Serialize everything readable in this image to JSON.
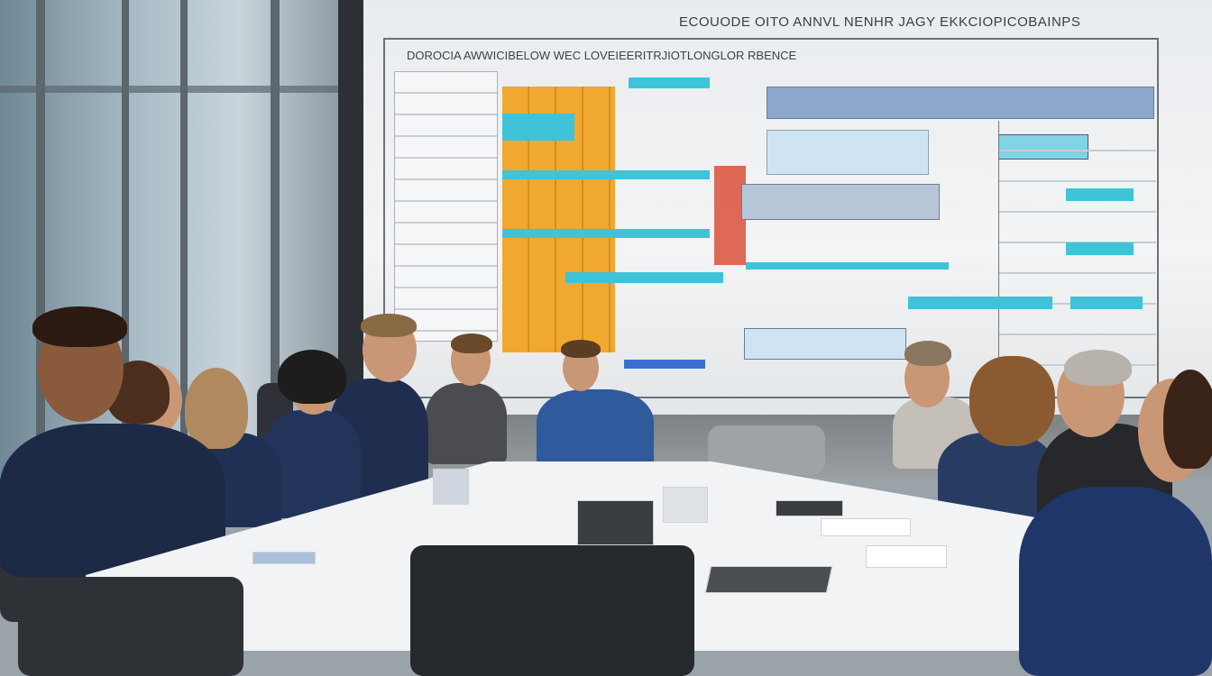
{
  "scene": {
    "description_free": true,
    "screen": {
      "title": "ECOUODE OITO ANNVL NENHR JAGY EKKCIOPICOBAINPS",
      "subtitle": "DOROCIA AWWICIBELOW WEC LOVEIEERITRJIOTLONGLOR RBENCE"
    },
    "colors": {
      "diagram_orange": "#f0a830",
      "diagram_cyan": "#3fc3d8",
      "diagram_blue": "#8ea8cc",
      "diagram_red": "#d9503a",
      "suit_navy": "#1f2e4e"
    }
  }
}
